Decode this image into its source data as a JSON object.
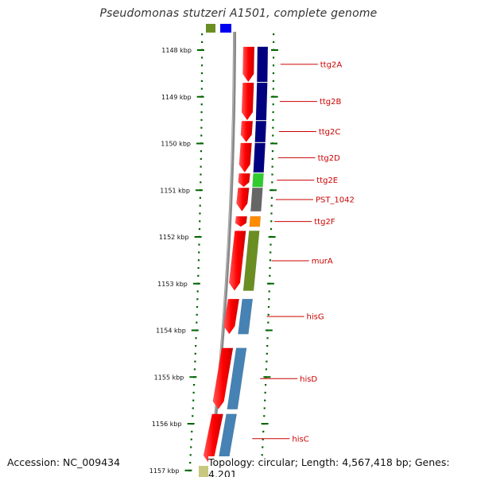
{
  "title": "Pseudomonas stutzeri A1501, complete genome",
  "accession": "Accession: NC_009434",
  "topology": "Topology: circular; Length: 4,567,418 bp; Genes: 4,201",
  "ticks": [
    "1148 kbp",
    "1149 kbp",
    "1150 kbp",
    "1151 kbp",
    "1152 kbp",
    "1153 kbp",
    "1154 kbp",
    "1155 kbp",
    "1156 kbp",
    "1157 kbp"
  ],
  "genes": [
    {
      "name": "ttg2A",
      "start_kbp": 1147.93,
      "end_kbp": 1148.68,
      "color": "#000080"
    },
    {
      "name": "ttg2B",
      "start_kbp": 1148.7,
      "end_kbp": 1149.5,
      "color": "#000080"
    },
    {
      "name": "ttg2C",
      "start_kbp": 1149.52,
      "end_kbp": 1149.97,
      "color": "#000080"
    },
    {
      "name": "ttg2D",
      "start_kbp": 1149.99,
      "end_kbp": 1150.62,
      "color": "#000080"
    },
    {
      "name": "ttg2E",
      "start_kbp": 1150.64,
      "end_kbp": 1150.93,
      "color": "#2ecc2e"
    },
    {
      "name": "PST_1042",
      "start_kbp": 1150.95,
      "end_kbp": 1151.45,
      "color": "#666666"
    },
    {
      "name": "ttg2F",
      "start_kbp": 1151.56,
      "end_kbp": 1151.78,
      "color": "#ff8c00"
    },
    {
      "name": "murA",
      "start_kbp": 1151.87,
      "end_kbp": 1153.15,
      "color": "#6b8e23"
    },
    {
      "name": "hisG",
      "start_kbp": 1153.33,
      "end_kbp": 1154.08,
      "color": "#4682b4"
    },
    {
      "name": "hisD",
      "start_kbp": 1154.38,
      "end_kbp": 1155.69,
      "color": "#4682b4"
    },
    {
      "name": "hisC",
      "start_kbp": 1155.79,
      "end_kbp": 1156.85,
      "color": "#4682b4"
    }
  ],
  "edge_features_top": [
    {
      "type": "cds",
      "color": "#6b8e23"
    },
    {
      "type": "cds",
      "color": "#0000ee"
    }
  ],
  "edge_features_bottom": [
    {
      "type": "cds",
      "color": "#c8c880"
    },
    {
      "type": "cds",
      "color": "#0000ee"
    }
  ],
  "colors": {
    "cds_strand": "#ff0000",
    "backbone": "#888888",
    "tick": "#006400",
    "label": "#cc0000"
  }
}
